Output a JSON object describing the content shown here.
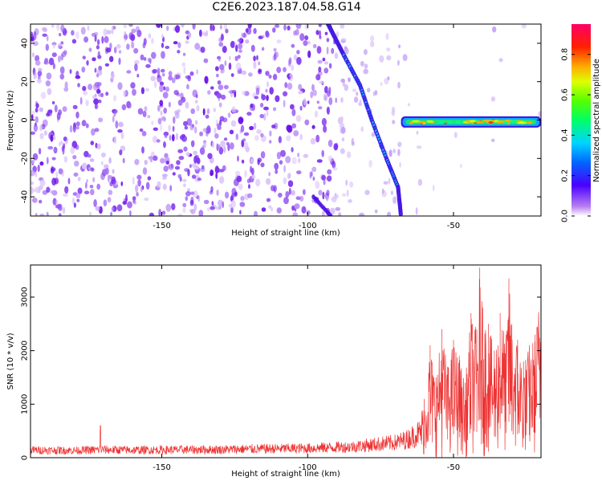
{
  "title": "C2E6.2023.187.04.58.G14",
  "chart_data": [
    {
      "type": "heatmap",
      "title": "C2E6.2023.187.04.58.G14",
      "xlabel": "Height of straight line (km)",
      "ylabel": "Frequency (Hz)",
      "xlim": [
        -195,
        -20
      ],
      "ylim": [
        -50,
        50
      ],
      "x_ticks": [
        -150,
        -100,
        -50
      ],
      "y_ticks": [
        -40,
        -20,
        0,
        20,
        40
      ],
      "colorbar": {
        "label": "Normalized spectral amplitude",
        "range": [
          0.0,
          0.95
        ],
        "ticks": [
          0.0,
          0.2,
          0.4,
          0.6,
          0.8
        ]
      },
      "features": [
        {
          "name": "diagonal streak",
          "points": [
            [
              -93,
              50
            ],
            [
              -88,
              35
            ],
            [
              -82,
              18
            ],
            [
              -78,
              0
            ],
            [
              -73,
              -20
            ],
            [
              -69,
              -35
            ],
            [
              -68,
              -50
            ]
          ],
          "amplitude": 0.3
        },
        {
          "name": "lower streak",
          "points": [
            [
              -98,
              -40
            ],
            [
              -92,
              -50
            ]
          ],
          "amplitude": 0.15
        },
        {
          "name": "horizontal band",
          "x_range": [
            -68,
            -20
          ],
          "frequency": -1,
          "amplitude": 0.7
        }
      ]
    },
    {
      "type": "line",
      "xlabel": "Height of straight line (km)",
      "ylabel": "SNR (10 * v/v)",
      "xlim": [
        -195,
        -20
      ],
      "ylim": [
        0,
        3600
      ],
      "x_ticks": [
        -150,
        -100,
        -50
      ],
      "y_ticks": [
        0,
        1000,
        2000,
        3000
      ],
      "color": "#ee3333",
      "x": [
        -195,
        -180,
        -170,
        -160,
        -150,
        -140,
        -130,
        -120,
        -110,
        -100,
        -90,
        -85,
        -80,
        -75,
        -70,
        -66,
        -62,
        -60,
        -58,
        -56,
        -54,
        -52,
        -50,
        -48,
        -46,
        -44,
        -42,
        -41,
        -40,
        -38,
        -36,
        -34,
        -32,
        -31,
        -30,
        -28,
        -26,
        -24,
        -22,
        -20
      ],
      "y": [
        210,
        200,
        220,
        210,
        215,
        220,
        225,
        240,
        250,
        260,
        290,
        300,
        340,
        380,
        420,
        500,
        680,
        1100,
        2100,
        1500,
        2400,
        1700,
        2200,
        1900,
        1400,
        2700,
        2400,
        3550,
        2800,
        2500,
        2000,
        2700,
        2300,
        3350,
        2500,
        2200,
        1800,
        2100,
        2300,
        3300
      ]
    }
  ]
}
